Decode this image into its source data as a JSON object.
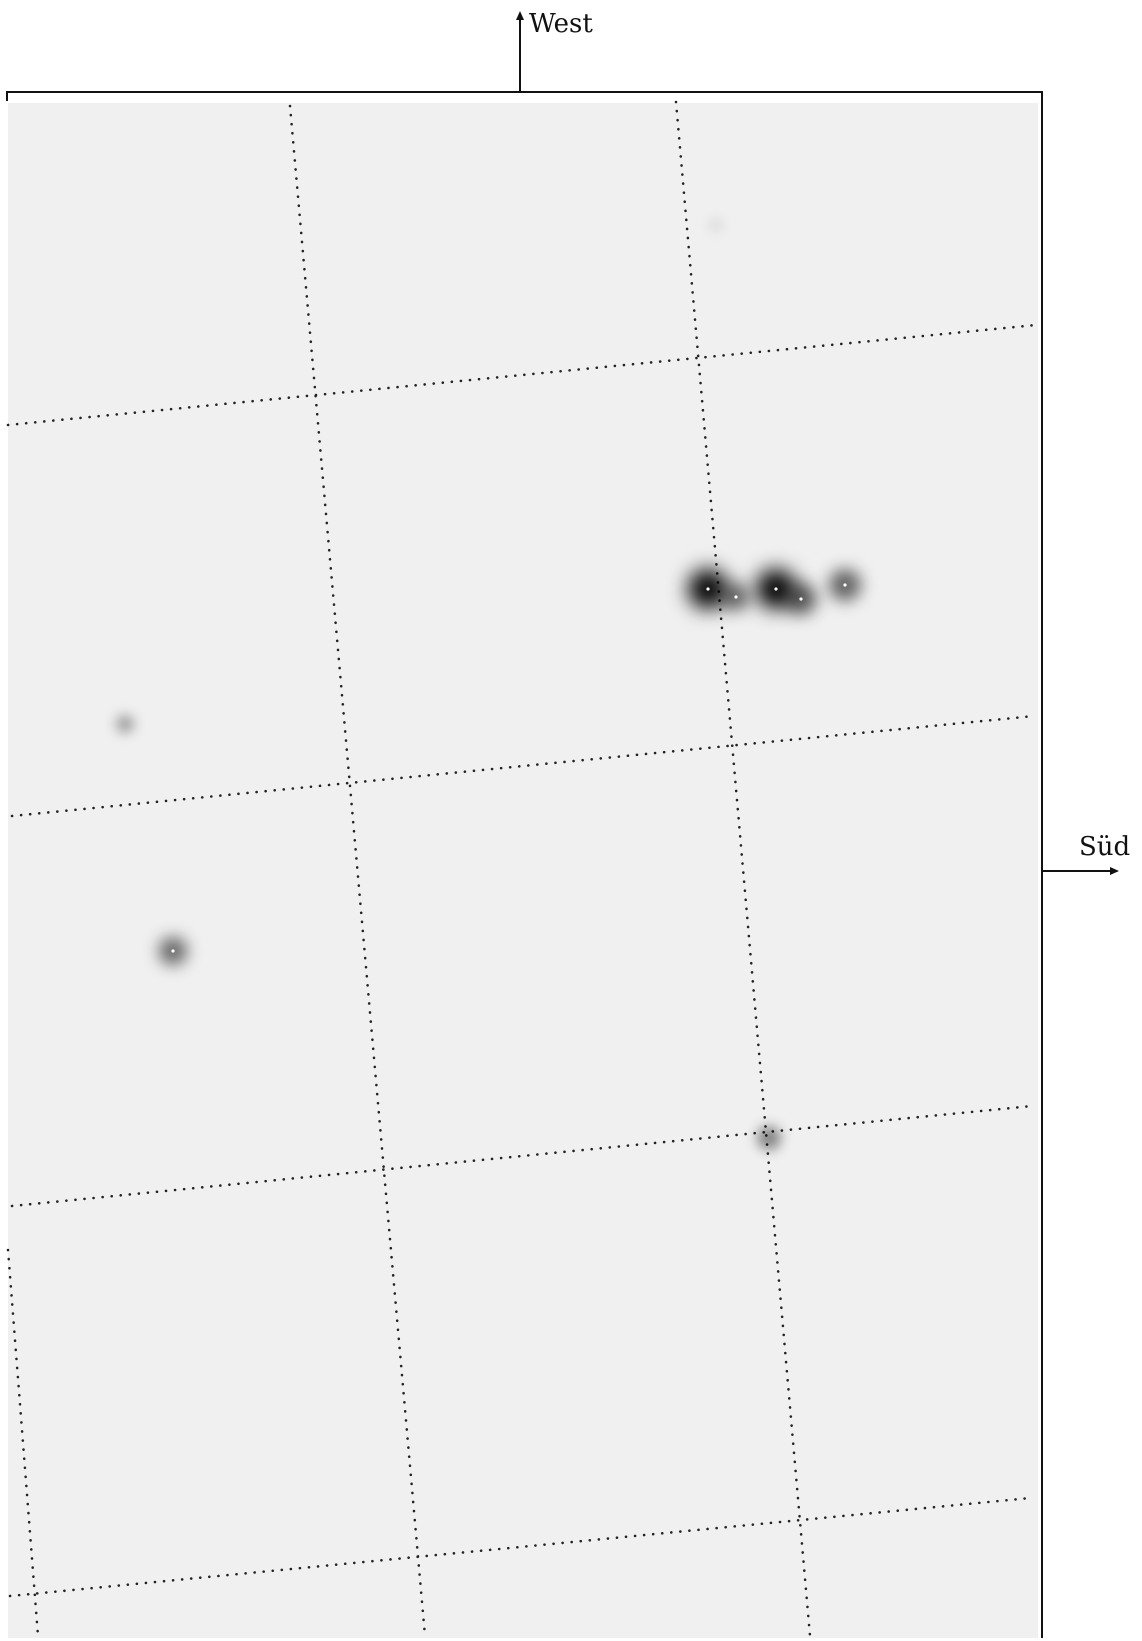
{
  "labels": {
    "top_direction": "West",
    "right_direction": "Süd"
  },
  "colors": {
    "field_background": "#f0f0f0",
    "grid": "#222222",
    "star": "#000000"
  },
  "stars": [
    {
      "id": "star-bright-1",
      "brightness": 1.0,
      "blur": "large"
    },
    {
      "id": "star-faint-2",
      "brightness": 0.55,
      "blur": "medium"
    },
    {
      "id": "star-bright-3",
      "brightness": 1.0,
      "blur": "large"
    },
    {
      "id": "star-faint-4",
      "brightness": 0.6,
      "blur": "medium"
    },
    {
      "id": "star-medium-5",
      "brightness": 0.6,
      "blur": "medium"
    },
    {
      "id": "star-faint-6",
      "brightness": 0.35,
      "blur": "small"
    },
    {
      "id": "star-medium-7",
      "brightness": 0.6,
      "blur": "medium"
    },
    {
      "id": "star-faint-8",
      "brightness": 0.45,
      "blur": "small"
    },
    {
      "id": "star-veryfaint-9",
      "brightness": 0.12,
      "blur": "small"
    }
  ]
}
